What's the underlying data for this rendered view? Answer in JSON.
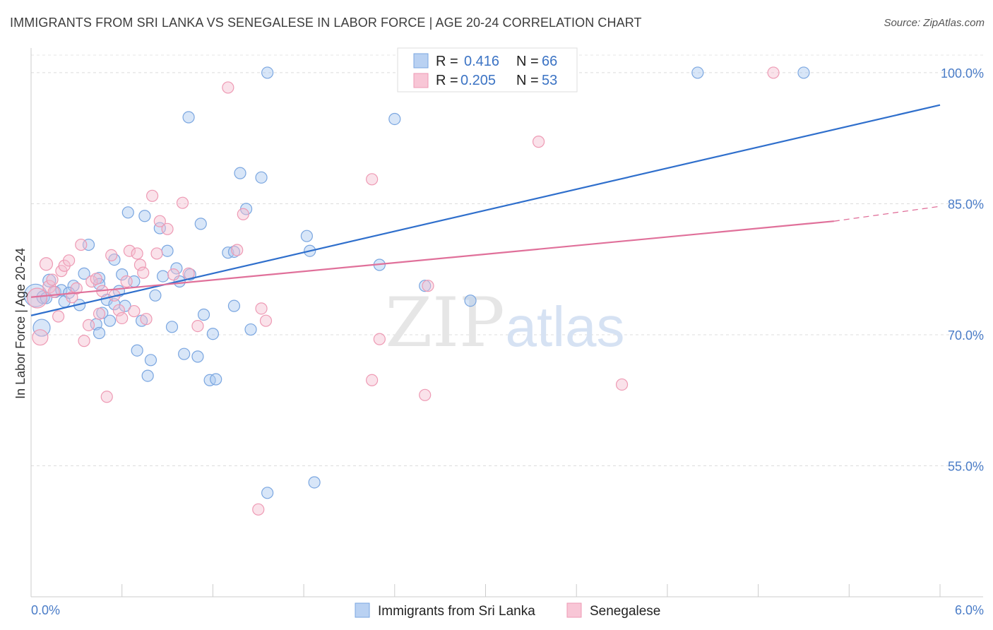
{
  "title": "IMMIGRANTS FROM SRI LANKA VS SENEGALESE IN LABOR FORCE | AGE 20-24 CORRELATION CHART",
  "source": "Source: ZipAtlas.com",
  "watermark": {
    "zip": "ZIP",
    "atlas": "atlas"
  },
  "chart_data": {
    "type": "scatter",
    "xlabel": "",
    "ylabel": "In Labor Force | Age 20-24",
    "xlim": [
      0,
      6
    ],
    "ylim": [
      40,
      102.5
    ],
    "x_tick_labels": [
      {
        "value": 0,
        "label": "0.0%"
      },
      {
        "value": 6,
        "label": "6.0%"
      }
    ],
    "y_tick_labels": [
      {
        "value": 100,
        "label": "100.0%"
      },
      {
        "value": 85,
        "label": "85.0%"
      },
      {
        "value": 70,
        "label": "70.0%"
      },
      {
        "value": 55,
        "label": "55.0%"
      }
    ],
    "legend": [
      {
        "series": "Immigrants from Sri Lanka",
        "r_label": "R =",
        "r_value": "0.416",
        "n_label": "N =",
        "n_value": "66"
      },
      {
        "series": "Senegalese",
        "r_label": "R =",
        "r_value": "0.205",
        "n_label": "N =",
        "n_value": "53"
      }
    ],
    "series": [
      {
        "name": "Immigrants from Sri Lanka",
        "color": "#7aa6e0",
        "fill": "#a9c8ef",
        "line_color": "#2f6fcc",
        "trend": {
          "x0": 0.0,
          "y0": 72.2,
          "x1": 6.0,
          "y1": 96.3
        },
        "points": [
          [
            0.03,
            74.5,
            16
          ],
          [
            0.07,
            70.8,
            12
          ],
          [
            0.08,
            74.3,
            9
          ],
          [
            0.12,
            76.2,
            9
          ],
          [
            0.16,
            74.9,
            8
          ],
          [
            0.2,
            75.1,
            8
          ],
          [
            0.22,
            73.8,
            8
          ],
          [
            0.28,
            75.6,
            8
          ],
          [
            0.32,
            73.4,
            8
          ],
          [
            0.35,
            77.0,
            8
          ],
          [
            0.38,
            80.3,
            8
          ],
          [
            0.43,
            71.2,
            8
          ],
          [
            0.45,
            76.5,
            8
          ],
          [
            0.45,
            75.8,
            8
          ],
          [
            0.45,
            70.2,
            8
          ],
          [
            0.47,
            72.5,
            8
          ],
          [
            0.5,
            74.0,
            8
          ],
          [
            0.52,
            71.6,
            8
          ],
          [
            0.55,
            73.5,
            8
          ],
          [
            0.55,
            78.6,
            8
          ],
          [
            0.58,
            75.0,
            8
          ],
          [
            0.6,
            76.9,
            8
          ],
          [
            0.62,
            73.3,
            8
          ],
          [
            0.64,
            84.0,
            8
          ],
          [
            0.68,
            76.1,
            8
          ],
          [
            0.7,
            68.2,
            8
          ],
          [
            0.73,
            71.6,
            8
          ],
          [
            0.75,
            83.6,
            8
          ],
          [
            0.77,
            65.3,
            8
          ],
          [
            0.79,
            67.1,
            8
          ],
          [
            0.82,
            74.5,
            8
          ],
          [
            0.85,
            82.2,
            8
          ],
          [
            0.87,
            76.7,
            8
          ],
          [
            0.9,
            79.6,
            8
          ],
          [
            0.93,
            70.9,
            8
          ],
          [
            0.96,
            77.6,
            8
          ],
          [
            0.98,
            76.1,
            8
          ],
          [
            1.01,
            67.8,
            8
          ],
          [
            1.04,
            94.9,
            8
          ],
          [
            1.05,
            76.9,
            8
          ],
          [
            1.1,
            67.5,
            8
          ],
          [
            1.12,
            82.7,
            8
          ],
          [
            1.14,
            72.3,
            8
          ],
          [
            1.18,
            64.8,
            8
          ],
          [
            1.2,
            70.1,
            8
          ],
          [
            1.22,
            64.9,
            8
          ],
          [
            1.3,
            79.4,
            8
          ],
          [
            1.34,
            73.3,
            8
          ],
          [
            1.34,
            79.5,
            8
          ],
          [
            1.38,
            88.5,
            8
          ],
          [
            1.42,
            84.4,
            8
          ],
          [
            1.45,
            70.6,
            8
          ],
          [
            1.52,
            88.0,
            8
          ],
          [
            1.56,
            100.0,
            8
          ],
          [
            1.56,
            51.9,
            8
          ],
          [
            1.82,
            81.3,
            8
          ],
          [
            1.84,
            79.6,
            8
          ],
          [
            1.87,
            53.1,
            8
          ],
          [
            2.3,
            78.0,
            8
          ],
          [
            2.4,
            94.7,
            8
          ],
          [
            2.6,
            75.6,
            8
          ],
          [
            2.9,
            73.9,
            8
          ],
          [
            4.4,
            100.0,
            8
          ],
          [
            5.1,
            100.0,
            8
          ],
          [
            0.1,
            74.2,
            8
          ],
          [
            0.25,
            74.8,
            8
          ]
        ]
      },
      {
        "name": "Senegalese",
        "color": "#ee9ab4",
        "fill": "#f5bfd0",
        "line_color": "#e0709a",
        "trend": {
          "x0": 0.0,
          "y0": 74.3,
          "x1": 5.3,
          "y1": 83.0
        },
        "trend_dash": {
          "x0": 5.3,
          "y0": 83.0,
          "x1": 6.0,
          "y1": 84.7
        },
        "points": [
          [
            0.04,
            74.2,
            14
          ],
          [
            0.06,
            69.7,
            11
          ],
          [
            0.1,
            78.1,
            9
          ],
          [
            0.12,
            75.5,
            9
          ],
          [
            0.14,
            76.3,
            8
          ],
          [
            0.18,
            72.1,
            8
          ],
          [
            0.2,
            77.3,
            8
          ],
          [
            0.22,
            77.9,
            8
          ],
          [
            0.25,
            78.5,
            8
          ],
          [
            0.27,
            74.3,
            8
          ],
          [
            0.3,
            75.3,
            8
          ],
          [
            0.33,
            80.3,
            8
          ],
          [
            0.35,
            69.3,
            8
          ],
          [
            0.38,
            71.1,
            8
          ],
          [
            0.4,
            76.1,
            8
          ],
          [
            0.43,
            76.4,
            8
          ],
          [
            0.45,
            72.4,
            8
          ],
          [
            0.47,
            75.0,
            8
          ],
          [
            0.5,
            62.9,
            8
          ],
          [
            0.53,
            79.1,
            8
          ],
          [
            0.55,
            74.5,
            8
          ],
          [
            0.58,
            72.8,
            8
          ],
          [
            0.6,
            71.9,
            8
          ],
          [
            0.63,
            76.1,
            8
          ],
          [
            0.65,
            79.6,
            8
          ],
          [
            0.68,
            72.7,
            8
          ],
          [
            0.7,
            79.3,
            8
          ],
          [
            0.72,
            78.0,
            8
          ],
          [
            0.74,
            77.1,
            8
          ],
          [
            0.76,
            71.8,
            8
          ],
          [
            0.8,
            85.9,
            8
          ],
          [
            0.83,
            79.3,
            8
          ],
          [
            0.85,
            83.0,
            8
          ],
          [
            0.9,
            82.1,
            8
          ],
          [
            0.94,
            76.9,
            8
          ],
          [
            1.0,
            85.1,
            8
          ],
          [
            1.04,
            77.0,
            8
          ],
          [
            1.1,
            71.0,
            8
          ],
          [
            1.3,
            98.3,
            8
          ],
          [
            1.36,
            79.7,
            8
          ],
          [
            1.4,
            83.8,
            8
          ],
          [
            1.52,
            73.0,
            8
          ],
          [
            1.55,
            71.6,
            8
          ],
          [
            1.5,
            50.0,
            8
          ],
          [
            2.3,
            69.5,
            8
          ],
          [
            2.25,
            64.8,
            8
          ],
          [
            2.25,
            87.8,
            8
          ],
          [
            2.6,
            63.1,
            8
          ],
          [
            2.62,
            75.6,
            8
          ],
          [
            3.35,
            92.1,
            8
          ],
          [
            3.9,
            64.3,
            8
          ],
          [
            4.9,
            100.0,
            8
          ],
          [
            0.15,
            74.9,
            8
          ]
        ]
      }
    ]
  }
}
